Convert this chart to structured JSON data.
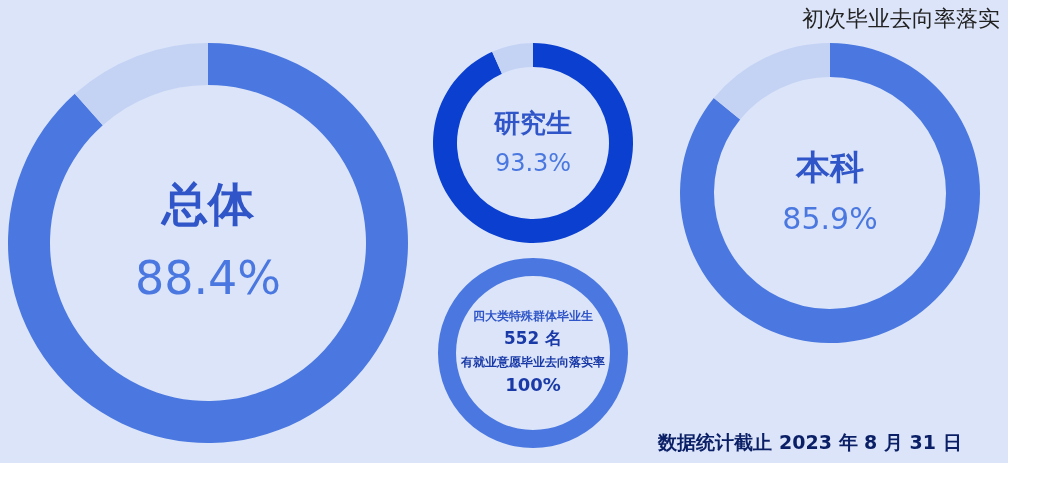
{
  "chart_data": [
    {
      "type": "donut",
      "title": "总体",
      "categories": [
        null,
        null
      ],
      "values": [
        88.4,
        11.6
      ],
      "colors": [
        "#4a78e0",
        "#c4d2f4"
      ],
      "value_labels": [
        "88.4%",
        null
      ],
      "annotations": [
        "初次毕业去向率落实"
      ]
    },
    {
      "type": "donut",
      "title": "研究生",
      "categories": [
        null,
        null
      ],
      "values": [
        93.3,
        6.7
      ],
      "colors": [
        "#0a3fd0",
        "#c4d2f4"
      ],
      "value_labels": [
        "93.3%",
        null
      ]
    },
    {
      "type": "donut",
      "title": "本科",
      "categories": [
        null,
        null
      ],
      "values": [
        85.9,
        14.1
      ],
      "colors": [
        "#4a78e0",
        "#c4d2f4"
      ],
      "value_labels": [
        "85.9%",
        null
      ],
      "annotations": [
        "数据统计截止 2023 年 8 月 31 日"
      ]
    },
    {
      "type": "donut",
      "title": "四大类特殊群体毕业生",
      "subtitle": "552 名",
      "categories": [
        null
      ],
      "values": [
        100
      ],
      "colors": [
        "#4a78e0"
      ],
      "value_labels": [
        "100%"
      ],
      "annotations": [
        "有就业意愿毕业去向落实率"
      ]
    }
  ]
}
